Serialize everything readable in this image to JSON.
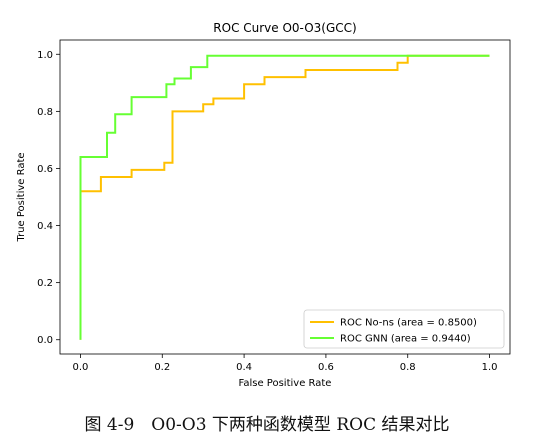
{
  "chart_data": {
    "type": "line",
    "title": "ROC Curve O0-O3(GCC)",
    "xlabel": "False Positive Rate",
    "ylabel": "True Positive Rate",
    "xlim": [
      -0.05,
      1.05
    ],
    "ylim": [
      -0.05,
      1.05
    ],
    "xticks": [
      0.0,
      0.2,
      0.4,
      0.6,
      0.8,
      1.0
    ],
    "yticks": [
      0.0,
      0.2,
      0.4,
      0.6,
      0.8,
      1.0
    ],
    "grid": false,
    "legend_position": "lower-right",
    "series": [
      {
        "name": "ROC No-ns (area = 0.8500)",
        "color": "#FFC000",
        "step": true,
        "x": [
          0.0,
          0.0,
          0.05,
          0.05,
          0.125,
          0.125,
          0.205,
          0.205,
          0.225,
          0.225,
          0.3,
          0.3,
          0.325,
          0.325,
          0.4,
          0.4,
          0.45,
          0.45,
          0.55,
          0.55,
          0.775,
          0.775,
          0.8,
          0.8,
          1.0
        ],
        "y": [
          0.0,
          0.52,
          0.52,
          0.57,
          0.57,
          0.595,
          0.595,
          0.62,
          0.62,
          0.8,
          0.8,
          0.825,
          0.825,
          0.845,
          0.845,
          0.895,
          0.895,
          0.92,
          0.92,
          0.945,
          0.945,
          0.97,
          0.97,
          0.995,
          0.995
        ]
      },
      {
        "name": "ROC GNN (area = 0.9440)",
        "color": "#66FF33",
        "step": true,
        "x": [
          0.0,
          0.0,
          0.065,
          0.065,
          0.085,
          0.085,
          0.125,
          0.125,
          0.21,
          0.21,
          0.23,
          0.23,
          0.27,
          0.27,
          0.31,
          0.31,
          1.0
        ],
        "y": [
          0.0,
          0.64,
          0.64,
          0.725,
          0.725,
          0.79,
          0.79,
          0.85,
          0.85,
          0.895,
          0.895,
          0.915,
          0.915,
          0.955,
          0.955,
          0.995,
          0.995
        ]
      }
    ]
  },
  "caption": "图 4-9　O0-O3 下两种函数模型 ROC 结果对比"
}
